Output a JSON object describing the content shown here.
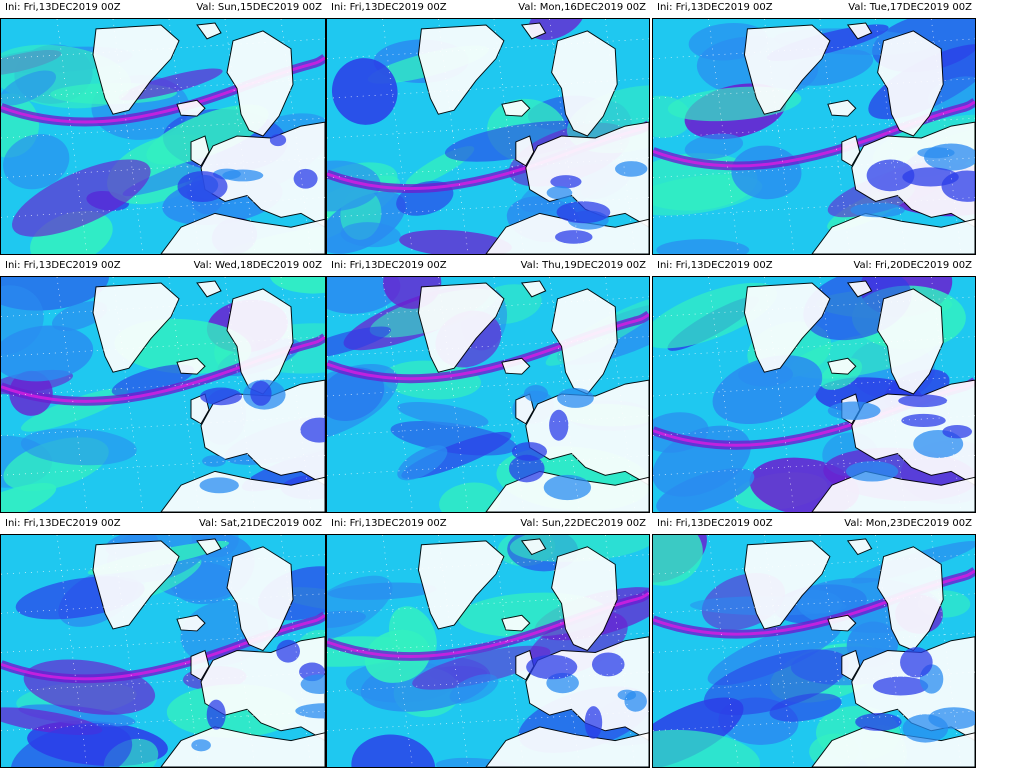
{
  "panels": [
    {
      "ini": "Ini: Fri,13DEC2019 00Z",
      "val": "Val: Sun,15DEC2019 00Z"
    },
    {
      "ini": "Ini: Fri,13DEC2019 00Z",
      "val": "Val: Mon,16DEC2019 00Z"
    },
    {
      "ini": "Ini: Fri,13DEC2019 00Z",
      "val": "Val: Tue,17DEC2019 00Z"
    },
    {
      "ini": "Ini: Fri,13DEC2019 00Z",
      "val": "Val: Wed,18DEC2019 00Z"
    },
    {
      "ini": "Ini: Fri,13DEC2019 00Z",
      "val": "Val: Thu,19DEC2019 00Z"
    },
    {
      "ini": "Ini: Fri,13DEC2019 00Z",
      "val": "Val: Fri,20DEC2019 00Z"
    },
    {
      "ini": "Ini: Fri,13DEC2019 00Z",
      "val": "Val: Sat,21DEC2019 00Z"
    },
    {
      "ini": "Ini: Fri,13DEC2019 00Z",
      "val": "Val: Sun,22DEC2019 00Z"
    },
    {
      "ini": "Ini: Fri,13DEC2019 00Z",
      "val": "Val: Mon,23DEC2019 00Z"
    }
  ],
  "colors": {
    "background": "#ffffff",
    "land": "#ffffff",
    "low": "#33f0c0",
    "mid_low": "#1fc8f0",
    "mid": "#2a8cf0",
    "high": "#2b3ee8",
    "very_high": "#6a1fd0",
    "extreme": "#d21ee0",
    "coastline": "#000000"
  }
}
